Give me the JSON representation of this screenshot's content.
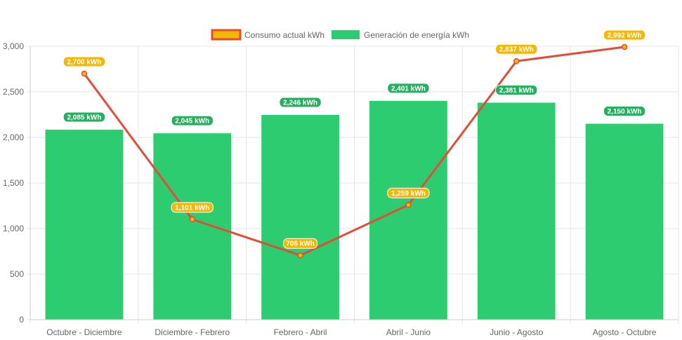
{
  "chart_data": {
    "type": "bar",
    "categories": [
      "Octubre - Diciembre",
      "Diciembre - Febrero",
      "Febrero - Abril",
      "Abril - Junio",
      "Junio - Agosto",
      "Agosto - Octubre"
    ],
    "ylim": [
      0,
      3000
    ],
    "yticks": [
      "0",
      "500",
      "1,000",
      "1,500",
      "2,000",
      "2,500",
      "3,000"
    ],
    "grid": true,
    "legend_position": "top",
    "series": [
      {
        "name": "Consumo actual kWh",
        "kind": "line",
        "values": [
          2700,
          1101,
          706,
          1259,
          2837,
          2992
        ],
        "labels": [
          "2,700 kWh",
          "1,101 kWh",
          "706 kWh",
          "1,259 kWh",
          "2,837 kWh",
          "2,992 kWh"
        ],
        "color": "#e04e39",
        "label_color": "#f5b700"
      },
      {
        "name": "Generación de energía kWh",
        "kind": "bar",
        "values": [
          2085,
          2045,
          2246,
          2401,
          2381,
          2150
        ],
        "labels": [
          "2,085 kWh",
          "2,045 kWh",
          "2,246 kWh",
          "2,401 kWh",
          "2,381 kWh",
          "2,150 kWh"
        ],
        "color": "#2ecc71"
      }
    ]
  }
}
